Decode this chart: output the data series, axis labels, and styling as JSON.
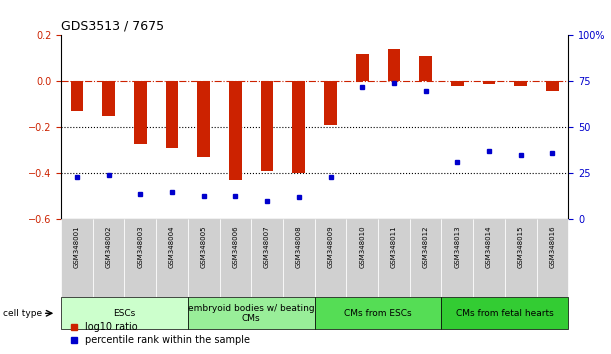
{
  "title": "GDS3513 / 7675",
  "samples": [
    "GSM348001",
    "GSM348002",
    "GSM348003",
    "GSM348004",
    "GSM348005",
    "GSM348006",
    "GSM348007",
    "GSM348008",
    "GSM348009",
    "GSM348010",
    "GSM348011",
    "GSM348012",
    "GSM348013",
    "GSM348014",
    "GSM348015",
    "GSM348016"
  ],
  "log10_ratio": [
    -0.13,
    -0.15,
    -0.27,
    -0.29,
    -0.33,
    -0.43,
    -0.39,
    -0.4,
    -0.19,
    0.12,
    0.14,
    0.11,
    -0.02,
    -0.01,
    -0.02,
    -0.04
  ],
  "percentile_rank": [
    23,
    24,
    14,
    15,
    13,
    13,
    10,
    12,
    23,
    72,
    74,
    70,
    31,
    37,
    35,
    36
  ],
  "ylim_left": [
    -0.6,
    0.2
  ],
  "ylim_right": [
    0,
    100
  ],
  "bar_color": "#cc2200",
  "dot_color": "#0000cc",
  "hline_color": "#cc2200",
  "dotted_line_color": "#000000",
  "cell_types": [
    {
      "label": "ESCs",
      "start": 0,
      "end": 4,
      "color": "#ccffcc"
    },
    {
      "label": "embryoid bodies w/ beating\nCMs",
      "start": 4,
      "end": 8,
      "color": "#99ee99"
    },
    {
      "label": "CMs from ESCs",
      "start": 8,
      "end": 12,
      "color": "#55dd55"
    },
    {
      "label": "CMs from fetal hearts",
      "start": 12,
      "end": 16,
      "color": "#33cc33"
    }
  ],
  "legend_red_label": "log10 ratio",
  "legend_blue_label": "percentile rank within the sample",
  "cell_type_label": "cell type",
  "tick_fontsize": 7,
  "title_fontsize": 9,
  "sample_fontsize": 5,
  "celltype_fontsize": 6.5
}
